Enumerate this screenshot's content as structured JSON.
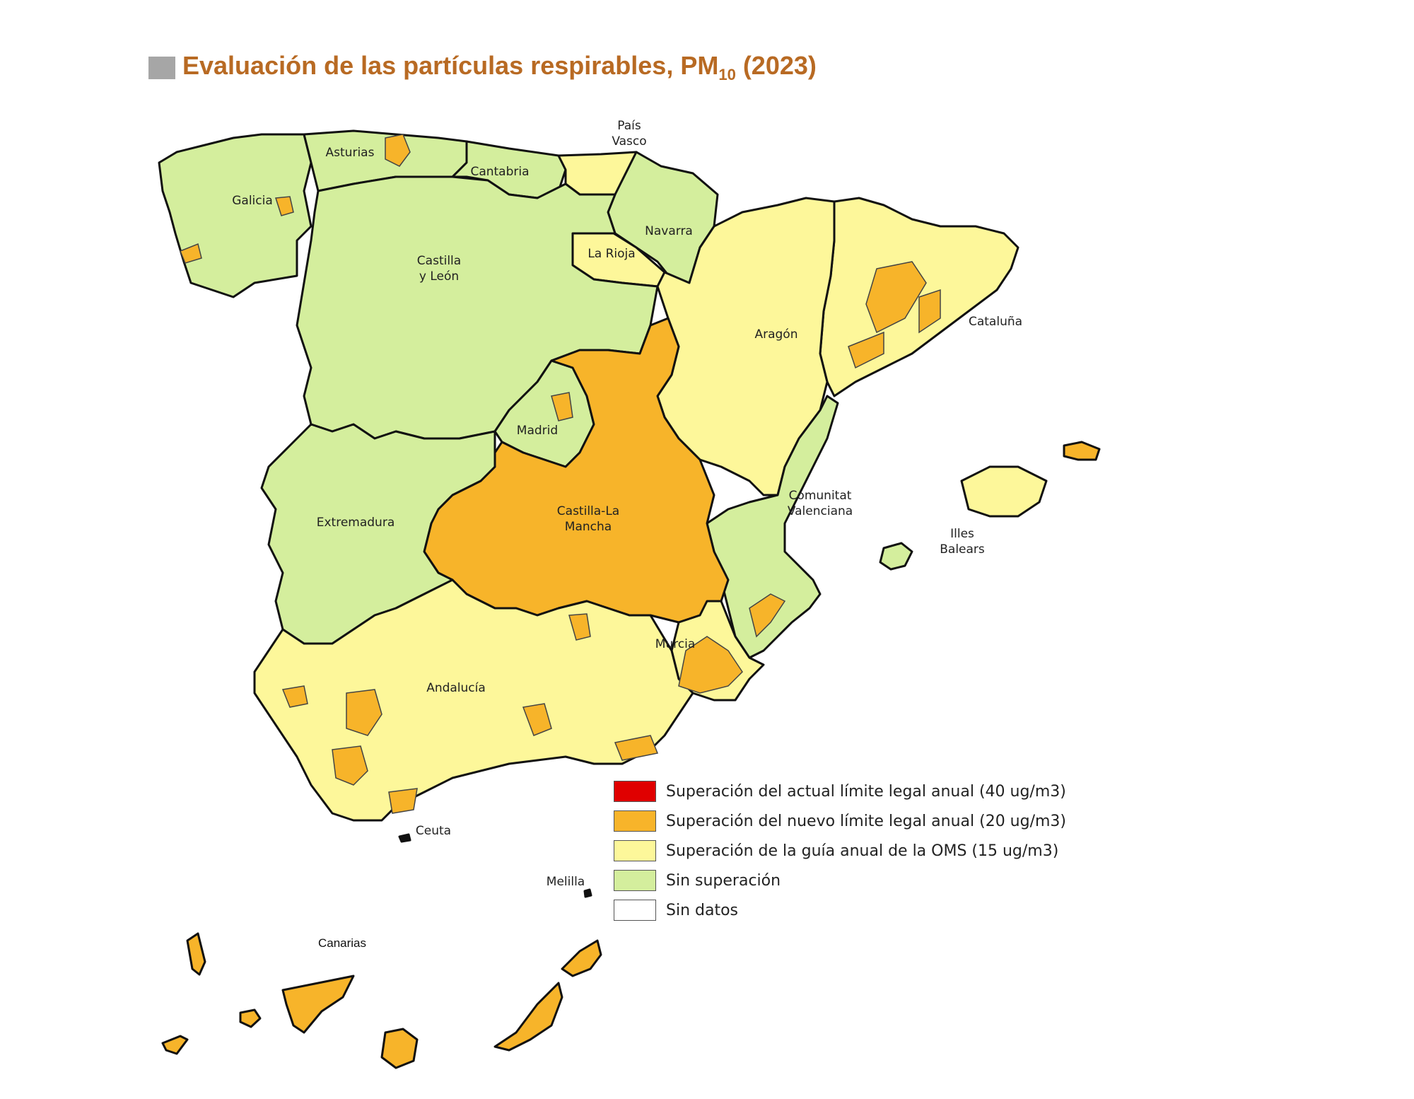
{
  "title": {
    "main": "Evaluación de las partículas respirables, PM",
    "sub": "10",
    "tail": " (2023)"
  },
  "colors": {
    "title": "#b86a23",
    "sin_superacion": "#d4ee9d",
    "oms": "#fdf79a",
    "nuevo_limite": "#f7b42a",
    "actual_limite": "#e00000",
    "sin_datos": "#ffffff"
  },
  "regions": {
    "pais_vasco_1": "País",
    "pais_vasco_2": "Vasco",
    "asturias": "Asturias",
    "cantabria": "Cantabria",
    "galicia": "Galicia",
    "navarra": "Navarra",
    "la_rioja": "La Rioja",
    "castilla_leon_1": "Castilla",
    "castilla_leon_2": "y León",
    "cataluna": "Cataluña",
    "aragon": "Aragón",
    "madrid": "Madrid",
    "castilla_mancha_1": "Castilla-La",
    "castilla_mancha_2": "Mancha",
    "extremadura": "Extremadura",
    "valenciana_1": "Comunitat",
    "valenciana_2": "Valenciana",
    "baleares_1": "Illes",
    "baleares_2": "Balears",
    "murcia": "Murcia",
    "andalucia": "Andalucía",
    "ceuta": "Ceuta",
    "melilla": "Melilla",
    "canarias": "Canarias"
  },
  "legend": [
    {
      "label": "Superación del actual límite legal anual (40 ug/m3)",
      "color": "#e00000"
    },
    {
      "label": "Superación del nuevo límite legal anual (20 ug/m3)",
      "color": "#f7b42a"
    },
    {
      "label": "Superación de la guía anual de la OMS (15 ug/m3)",
      "color": "#fdf79a"
    },
    {
      "label": "Sin superación",
      "color": "#d4ee9d"
    },
    {
      "label": "Sin datos",
      "color": "#ffffff"
    }
  ]
}
